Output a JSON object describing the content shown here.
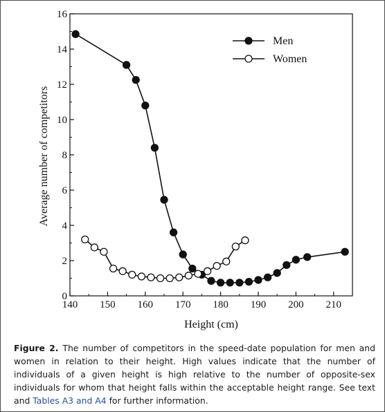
{
  "chart_data": {
    "type": "line",
    "xlabel": "Height (cm)",
    "ylabel": "Average number of competitors",
    "xlim": [
      140,
      215
    ],
    "ylim": [
      0,
      16
    ],
    "xticks": [
      "140",
      "150",
      "160",
      "170",
      "180",
      "190",
      "200",
      "210"
    ],
    "yticks": [
      "0",
      "2",
      "4",
      "6",
      "8",
      "10",
      "12",
      "14",
      "16"
    ],
    "legend_position": "top-right",
    "grid": false,
    "series": [
      {
        "name": "Men",
        "marker": "filled-circle",
        "x": [
          141.5,
          155,
          157.5,
          160,
          162.5,
          165,
          167.5,
          170,
          172.5,
          175,
          177.5,
          180,
          182.5,
          185,
          187.5,
          190,
          192.5,
          195,
          197.5,
          200,
          203,
          213
        ],
        "y": [
          14.85,
          13.1,
          12.25,
          10.8,
          8.4,
          5.45,
          3.6,
          2.35,
          1.55,
          1.2,
          0.85,
          0.75,
          0.75,
          0.75,
          0.8,
          0.9,
          1.05,
          1.3,
          1.75,
          2.05,
          2.2,
          2.5
        ]
      },
      {
        "name": "Women",
        "marker": "open-circle",
        "x": [
          144,
          146.5,
          149,
          151.5,
          154,
          156.5,
          159,
          161.5,
          164,
          166.5,
          169,
          171.5,
          174,
          176.5,
          179,
          181.5,
          184,
          186.5
        ],
        "y": [
          3.2,
          2.75,
          2.5,
          1.55,
          1.4,
          1.2,
          1.1,
          1.05,
          1.0,
          1.0,
          1.05,
          1.15,
          1.25,
          1.4,
          1.7,
          1.95,
          2.8,
          3.15
        ]
      }
    ]
  },
  "caption": {
    "label": "Figure 2.",
    "text_before": "The number of competitors in the speed-date population for men and women in relation to their height. High values indicate that the number of individuals of a given height is high relative to the number of opposite-sex individuals for whom that height falls within the acceptable height range. See text and",
    "link": "Tables A3 and A4",
    "text_after": "for further information."
  },
  "colors": {
    "ink": "#111111",
    "link": "#2a4f9a"
  }
}
